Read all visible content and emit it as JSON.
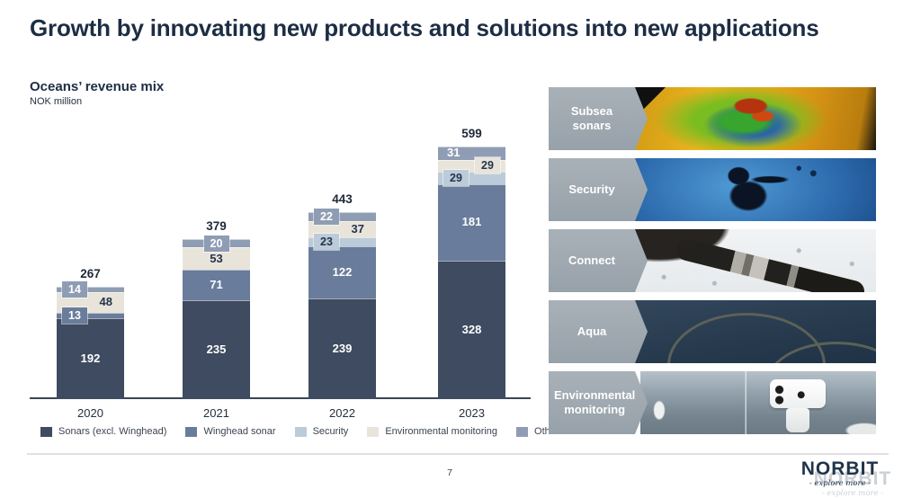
{
  "slide": {
    "title": "Growth by innovating new products and solutions into new applications",
    "page_number": "7",
    "logo": {
      "name": "NORBIT",
      "tagline": "- explore more -"
    }
  },
  "chart_data": {
    "type": "bar",
    "stacked": true,
    "title": "Oceans’ revenue mix",
    "ylabel": "NOK million",
    "categories": [
      "2020",
      "2021",
      "2022",
      "2023"
    ],
    "totals": [
      "267",
      "379",
      "443",
      "599"
    ],
    "series": [
      {
        "name": "Sonars (excl. Winghead)",
        "color": "#3e4b60",
        "label_dark": false,
        "values": [
          192,
          235,
          239,
          328
        ],
        "value_labels": [
          "inside-center",
          "inside-center",
          "inside-center",
          "inside-center"
        ]
      },
      {
        "name": "Winghead sonar",
        "color": "#697c9b",
        "label_dark": false,
        "values": [
          13,
          71,
          122,
          181
        ],
        "value_labels": [
          "callout-left",
          "inside-center",
          "inside-center",
          "inside-center"
        ]
      },
      {
        "name": "Security",
        "color": "#bccbd9",
        "label_dark": true,
        "values": [
          0,
          0,
          23,
          29
        ],
        "value_labels": [
          null,
          null,
          "callout-left",
          "callout-left"
        ]
      },
      {
        "name": "Environmental monitoring",
        "color": "#e9e4da",
        "label_dark": true,
        "values": [
          48,
          53,
          37,
          29
        ],
        "value_labels": [
          "inside-right",
          "inside-center",
          "inside-right",
          "callout-right"
        ]
      },
      {
        "name": "Other",
        "color": "#8f9db4",
        "label_dark": false,
        "values": [
          14,
          20,
          22,
          31
        ],
        "value_labels": [
          "callout-left",
          "callout-center",
          "callout-left",
          "inside-left"
        ]
      }
    ],
    "legend_position": "bottom",
    "grid": false,
    "ylim": [
      0,
      650
    ]
  },
  "panel": {
    "items": [
      {
        "key": "subsea-sonars",
        "label": "Subsea sonars",
        "image": "sonar-seabed-scan"
      },
      {
        "key": "security",
        "label": "Security",
        "image": "diver-silhouette"
      },
      {
        "key": "connect",
        "label": "Connect",
        "image": "subsea-connector-cable"
      },
      {
        "key": "aqua",
        "label": "Aqua",
        "image": "fish-farm-rings"
      },
      {
        "key": "environmental-monitoring",
        "label": "Environmental monitoring",
        "image": "monitoring-camera-on-ship"
      }
    ]
  },
  "colors": {
    "title_text": "#1c2d44",
    "axis_line": "#3a4655",
    "panel_label_bg": "#9fa8b0"
  }
}
